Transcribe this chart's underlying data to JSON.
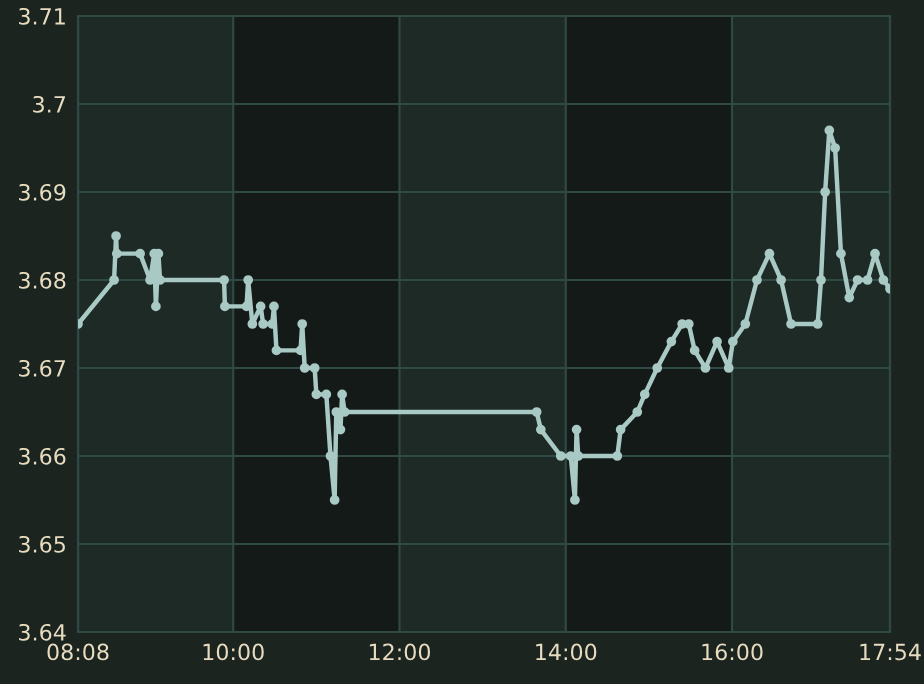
{
  "chart_data": {
    "type": "line",
    "x": [
      8.133,
      8.567,
      8.591,
      8.6,
      8.88,
      9.0,
      9.05,
      9.07,
      9.1,
      9.12,
      9.89,
      9.9,
      10.16,
      10.18,
      10.23,
      10.33,
      10.36,
      10.47,
      10.49,
      10.52,
      10.81,
      10.83,
      10.86,
      10.98,
      11.0,
      11.12,
      11.17,
      11.22,
      11.24,
      11.29,
      11.31,
      11.34,
      13.65,
      13.7,
      13.94,
      14.06,
      14.11,
      14.13,
      14.15,
      14.62,
      14.66,
      14.86,
      14.95,
      15.1,
      15.27,
      15.4,
      15.48,
      15.55,
      15.68,
      15.82,
      15.96,
      16.01,
      16.16,
      16.3,
      16.45,
      16.59,
      16.71,
      17.03,
      17.07,
      17.12,
      17.17,
      17.24,
      17.31,
      17.41,
      17.51,
      17.63,
      17.72,
      17.82,
      17.9
    ],
    "series": [
      {
        "color": "#a9c9c5",
        "values": [
          3.675,
          3.68,
          3.685,
          3.683,
          3.683,
          3.68,
          3.683,
          3.677,
          3.683,
          3.68,
          3.68,
          3.677,
          3.677,
          3.68,
          3.675,
          3.677,
          3.675,
          3.675,
          3.677,
          3.672,
          3.672,
          3.675,
          3.67,
          3.67,
          3.667,
          3.667,
          3.66,
          3.655,
          3.665,
          3.663,
          3.667,
          3.665,
          3.665,
          3.663,
          3.66,
          3.66,
          3.655,
          3.663,
          3.66,
          3.66,
          3.663,
          3.665,
          3.667,
          3.67,
          3.673,
          3.675,
          3.675,
          3.672,
          3.67,
          3.673,
          3.67,
          3.673,
          3.675,
          3.68,
          3.683,
          3.68,
          3.675,
          3.675,
          3.68,
          3.69,
          3.697,
          3.695,
          3.683,
          3.678,
          3.68,
          3.68,
          3.683,
          3.68,
          3.679
        ]
      }
    ],
    "xlim": [
      8.133,
      17.9
    ],
    "xticks": [
      {
        "value": 8.133,
        "label": "08:08"
      },
      {
        "value": 10,
        "label": "10:00"
      },
      {
        "value": 12,
        "label": "12:00"
      },
      {
        "value": 14,
        "label": "14:00"
      },
      {
        "value": 16,
        "label": "16:00"
      },
      {
        "value": 17.9,
        "label": "17:54"
      }
    ],
    "ylim": [
      3.64,
      3.71
    ],
    "yticks": [
      3.64,
      3.65,
      3.66,
      3.67,
      3.68,
      3.69,
      3.7,
      3.71
    ],
    "bands": [
      {
        "axis": "x",
        "from": 10,
        "to": 12,
        "color": "#141a17"
      },
      {
        "axis": "x",
        "from": 14,
        "to": 16,
        "color": "#141a17"
      }
    ],
    "grid": true,
    "marker": "circle",
    "line_style": "solid"
  }
}
